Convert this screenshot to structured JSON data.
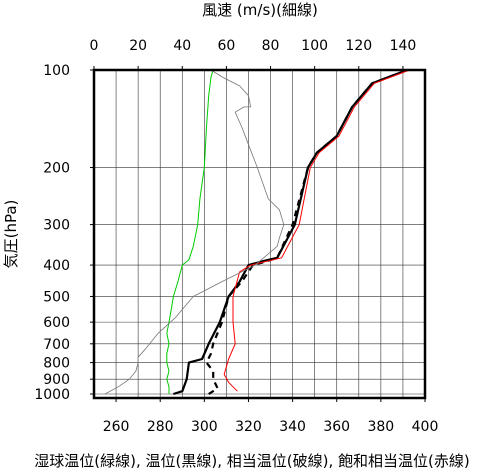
{
  "chart_data": {
    "type": "line",
    "top_axis_label": "風速 (m/s)(細線)",
    "y_axis_label": "気圧(hPa)",
    "bottom_caption": "湿球温位(緑線), 温位(黒線), 相当温位(破線), 飽和相当温位(赤線)",
    "x_bottom": {
      "unit": "K",
      "lim": [
        250,
        400
      ],
      "ticks": [
        260,
        280,
        300,
        320,
        340,
        360,
        380,
        400
      ]
    },
    "x_top": {
      "unit": "m/s",
      "lim": [
        0,
        150
      ],
      "ticks": [
        0,
        20,
        40,
        60,
        80,
        100,
        120,
        140
      ]
    },
    "y": {
      "unit": "hPa",
      "scale": "log",
      "lim": [
        1050,
        100
      ],
      "ticks": [
        100,
        200,
        300,
        400,
        500,
        600,
        700,
        800,
        900,
        1000
      ]
    },
    "grid": true,
    "series": [
      {
        "key": "wetbulb",
        "axis": "bottom",
        "color": "#00cc00",
        "dash": "solid",
        "points": [
          [
            284,
            1000
          ],
          [
            284,
            950
          ],
          [
            283,
            900
          ],
          [
            284,
            850
          ],
          [
            283,
            800
          ],
          [
            283,
            750
          ],
          [
            284,
            700
          ],
          [
            283,
            650
          ],
          [
            284,
            600
          ],
          [
            285,
            550
          ],
          [
            286,
            500
          ],
          [
            288,
            450
          ],
          [
            290,
            400
          ],
          [
            293,
            385
          ],
          [
            295,
            350
          ],
          [
            297,
            300
          ],
          [
            298,
            250
          ],
          [
            300,
            200
          ],
          [
            301,
            150
          ],
          [
            302,
            120
          ],
          [
            303,
            105
          ],
          [
            304,
            100
          ]
        ]
      },
      {
        "key": "theta",
        "axis": "bottom",
        "color": "#000000",
        "dash": "solid",
        "points": [
          [
            286,
            1000
          ],
          [
            290,
            980
          ],
          [
            292,
            900
          ],
          [
            293,
            800
          ],
          [
            299,
            780
          ],
          [
            302,
            700
          ],
          [
            307,
            600
          ],
          [
            311,
            500
          ],
          [
            316,
            450
          ],
          [
            320,
            400
          ],
          [
            326,
            390
          ],
          [
            333,
            380
          ],
          [
            341,
            300
          ],
          [
            347,
            200
          ],
          [
            351,
            180
          ],
          [
            360,
            160
          ],
          [
            367,
            130
          ],
          [
            376,
            110
          ],
          [
            392,
            100
          ]
        ]
      },
      {
        "key": "theta_e",
        "axis": "bottom",
        "color": "#000000",
        "dash": "dash",
        "points": [
          [
            302,
            1000
          ],
          [
            306,
            960
          ],
          [
            304,
            900
          ],
          [
            304,
            850
          ],
          [
            301,
            800
          ],
          [
            303,
            750
          ],
          [
            304,
            700
          ],
          [
            308,
            600
          ],
          [
            311,
            500
          ],
          [
            317,
            450
          ],
          [
            322,
            400
          ],
          [
            328,
            390
          ],
          [
            333,
            380
          ],
          [
            340,
            300
          ],
          [
            347,
            200
          ],
          [
            351,
            180
          ],
          [
            360,
            160
          ],
          [
            367,
            130
          ],
          [
            376,
            110
          ],
          [
            392,
            100
          ]
        ]
      },
      {
        "key": "theta_es",
        "axis": "bottom",
        "color": "#ff0000",
        "dash": "solid",
        "points": [
          [
            315,
            980
          ],
          [
            311,
            920
          ],
          [
            309,
            870
          ],
          [
            311,
            780
          ],
          [
            314,
            700
          ],
          [
            313,
            600
          ],
          [
            313,
            500
          ],
          [
            316,
            420
          ],
          [
            321,
            400
          ],
          [
            335,
            380
          ],
          [
            343,
            300
          ],
          [
            348,
            200
          ],
          [
            352,
            180
          ],
          [
            361,
            160
          ],
          [
            368,
            130
          ],
          [
            377,
            110
          ],
          [
            393,
            100
          ]
        ]
      },
      {
        "key": "wind",
        "axis": "top",
        "color": "#777777",
        "dash": "solid",
        "points": [
          [
            5,
            1000
          ],
          [
            11,
            950
          ],
          [
            16,
            900
          ],
          [
            19,
            850
          ],
          [
            20,
            800
          ],
          [
            20,
            770
          ],
          [
            23,
            730
          ],
          [
            29,
            650
          ],
          [
            37,
            580
          ],
          [
            45,
            500
          ],
          [
            58,
            450
          ],
          [
            73,
            400
          ],
          [
            83,
            350
          ],
          [
            84,
            330
          ],
          [
            86,
            300
          ],
          [
            84,
            270
          ],
          [
            79,
            250
          ],
          [
            74,
            200
          ],
          [
            70,
            170
          ],
          [
            67,
            150
          ],
          [
            64,
            135
          ],
          [
            68,
            130
          ],
          [
            71,
            130
          ],
          [
            70,
            120
          ],
          [
            66,
            112
          ],
          [
            58,
            105
          ],
          [
            53,
            100
          ]
        ]
      }
    ]
  }
}
